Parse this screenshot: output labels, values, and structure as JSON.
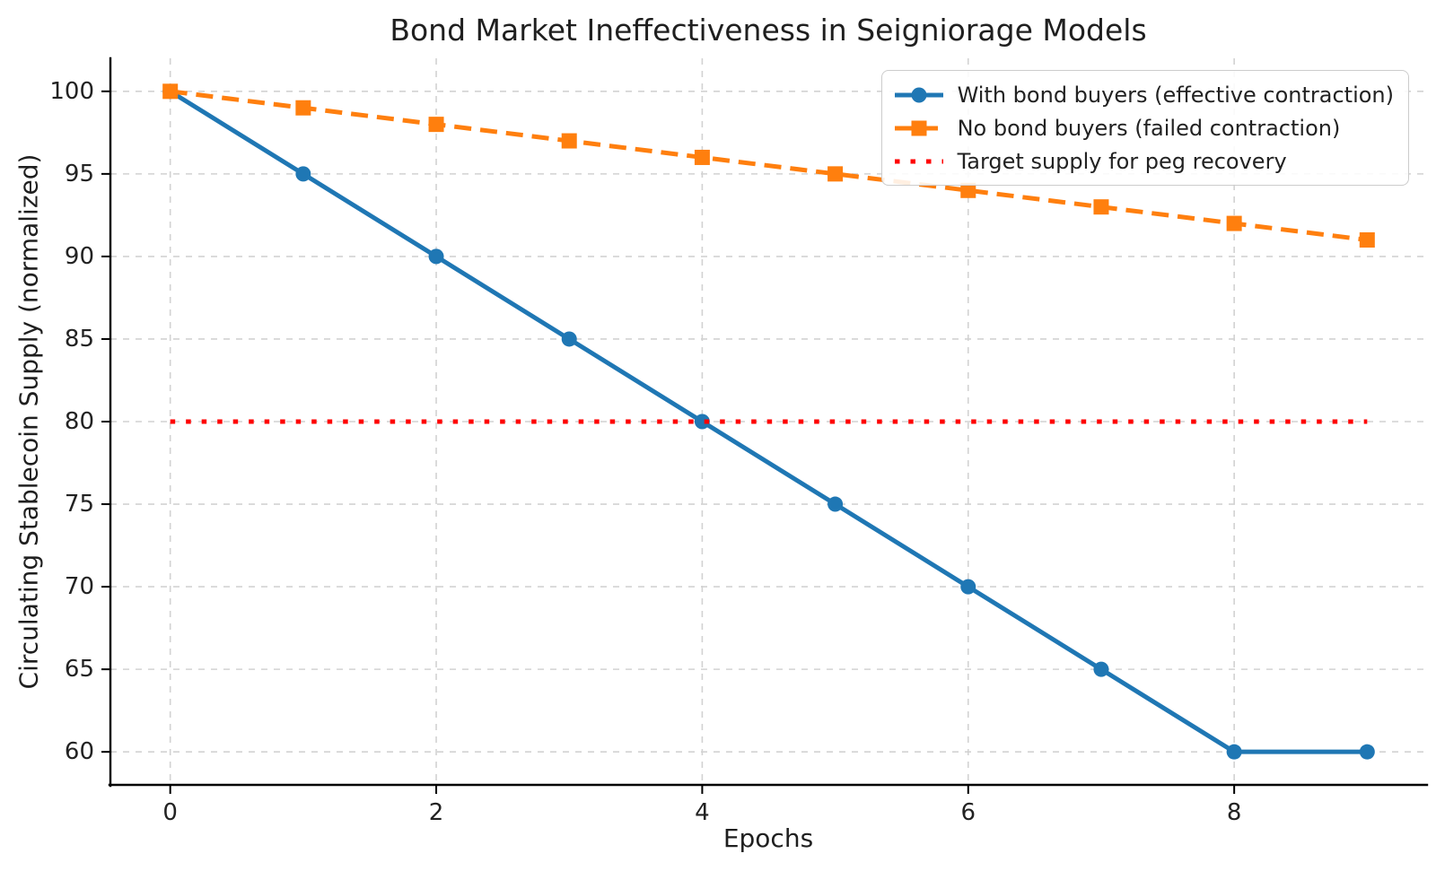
{
  "chart_data": {
    "type": "line",
    "title": "Bond Market Ineffectiveness in Seigniorage Models",
    "xlabel": "Epochs",
    "ylabel": "Circulating Stablecoin Supply (normalized)",
    "x": [
      0,
      1,
      2,
      3,
      4,
      5,
      6,
      7,
      8,
      9
    ],
    "series": [
      {
        "name": "With bond buyers (effective contraction)",
        "values": [
          100,
          95,
          90,
          85,
          80,
          75,
          70,
          65,
          60,
          60
        ],
        "color": "#1f77b4",
        "linestyle": "solid",
        "marker": "circle"
      },
      {
        "name": "No bond buyers (failed contraction)",
        "values": [
          100,
          99,
          98,
          97,
          96,
          95,
          94,
          93,
          92,
          91
        ],
        "color": "#ff7f0e",
        "linestyle": "dashed",
        "marker": "square"
      },
      {
        "name": "Target supply for peg recovery",
        "values": [
          80,
          80,
          80,
          80,
          80,
          80,
          80,
          80,
          80,
          80
        ],
        "color": "#ff0000",
        "linestyle": "dotted",
        "marker": "none"
      }
    ],
    "xlim": [
      -0.45,
      9.45
    ],
    "ylim": [
      58,
      102
    ],
    "xticks": [
      0,
      2,
      4,
      6,
      8
    ],
    "yticks": [
      60,
      65,
      70,
      75,
      80,
      85,
      90,
      95,
      100
    ],
    "grid": true,
    "grid_color": "#d2d2d2",
    "axis_color": "#000000",
    "legend_position": "upper right"
  }
}
